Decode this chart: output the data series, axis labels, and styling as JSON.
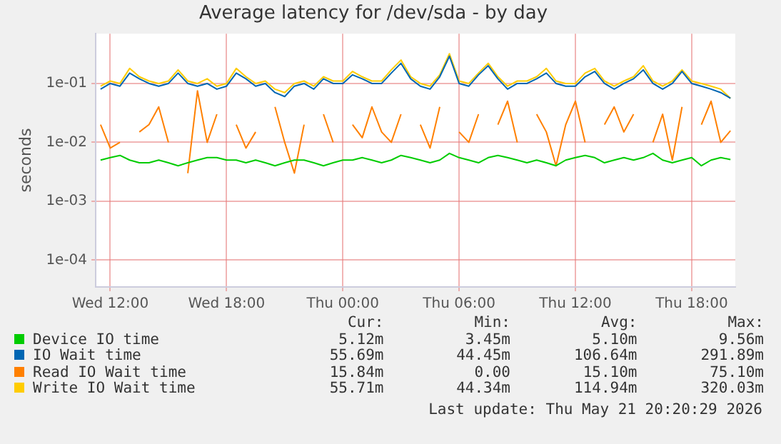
{
  "chart_data": {
    "type": "line",
    "title": "Average latency for /dev/sda - by day",
    "ylabel": "seconds",
    "log": "y",
    "grid": true,
    "legend": "bottom",
    "marker": "none",
    "line_style": "solid",
    "categories": [
      null,
      "Wed 12:00",
      null,
      null,
      null,
      null,
      null,
      null,
      null,
      null,
      null,
      null,
      null,
      "Wed 18:00",
      null,
      null,
      null,
      null,
      null,
      null,
      null,
      null,
      null,
      null,
      null,
      "Thu 00:00",
      null,
      null,
      null,
      null,
      null,
      null,
      null,
      null,
      null,
      null,
      null,
      "Thu 06:00",
      null,
      null,
      null,
      null,
      null,
      null,
      null,
      null,
      null,
      null,
      null,
      "Thu 12:00",
      null,
      null,
      null,
      null,
      null,
      null,
      null,
      null,
      null,
      null,
      null,
      "Thu 18:00",
      null,
      null,
      null,
      null
    ],
    "ylim": [
      3.5e-05,
      0.7
    ],
    "yticks": [
      {
        "value": 0.0001,
        "label": "1e-04"
      },
      {
        "value": 0.001,
        "label": "1e-03"
      },
      {
        "value": 0.01,
        "label": "1e-02"
      },
      {
        "value": 0.1,
        "label": "1e-01"
      }
    ],
    "series": [
      {
        "name": "Device IO time",
        "color": "#00cc00",
        "values": [
          0.005,
          0.0055,
          0.006,
          0.005,
          0.0045,
          0.0045,
          0.005,
          0.0045,
          0.004,
          0.0045,
          0.005,
          0.0055,
          0.0055,
          0.005,
          0.005,
          0.0045,
          0.005,
          0.0045,
          0.004,
          0.0045,
          0.005,
          0.005,
          0.0045,
          0.004,
          0.0045,
          0.005,
          0.005,
          0.0055,
          0.005,
          0.0045,
          0.005,
          0.006,
          0.0055,
          0.005,
          0.0045,
          0.005,
          0.0065,
          0.0055,
          0.005,
          0.0045,
          0.0055,
          0.006,
          0.0055,
          0.005,
          0.0045,
          0.005,
          0.0045,
          0.004,
          0.005,
          0.0055,
          0.006,
          0.0055,
          0.0045,
          0.005,
          0.0055,
          0.005,
          0.0055,
          0.0065,
          0.005,
          0.0045,
          0.005,
          0.0055,
          0.004,
          0.005,
          0.0055,
          0.0051
        ]
      },
      {
        "name": "IO Wait time",
        "color": "#0066b3",
        "values": [
          0.08,
          0.1,
          0.09,
          0.15,
          0.12,
          0.1,
          0.09,
          0.1,
          0.15,
          0.1,
          0.09,
          0.1,
          0.08,
          0.09,
          0.15,
          0.12,
          0.09,
          0.1,
          0.07,
          0.06,
          0.09,
          0.1,
          0.08,
          0.12,
          0.1,
          0.1,
          0.14,
          0.12,
          0.1,
          0.1,
          0.15,
          0.22,
          0.12,
          0.09,
          0.08,
          0.13,
          0.29,
          0.1,
          0.09,
          0.14,
          0.2,
          0.12,
          0.08,
          0.1,
          0.1,
          0.12,
          0.15,
          0.1,
          0.09,
          0.09,
          0.13,
          0.16,
          0.1,
          0.08,
          0.1,
          0.12,
          0.17,
          0.1,
          0.08,
          0.1,
          0.16,
          0.1,
          0.09,
          0.08,
          0.07,
          0.056
        ]
      },
      {
        "name": "Read IO Wait time",
        "color": "#ff8000",
        "values": [
          0.02,
          0.008,
          0.01,
          null,
          0.015,
          0.02,
          0.04,
          0.01,
          null,
          0.003,
          0.075,
          0.01,
          0.03,
          null,
          0.02,
          0.008,
          0.015,
          null,
          0.04,
          0.01,
          0.003,
          0.02,
          null,
          0.03,
          0.01,
          null,
          0.02,
          0.012,
          0.04,
          0.015,
          0.01,
          0.03,
          null,
          0.02,
          0.008,
          0.04,
          null,
          0.015,
          0.01,
          0.03,
          null,
          0.02,
          0.05,
          0.01,
          null,
          0.03,
          0.015,
          0.004,
          0.02,
          0.05,
          0.01,
          null,
          0.02,
          0.04,
          0.015,
          0.03,
          null,
          0.01,
          0.03,
          0.005,
          0.04,
          null,
          0.02,
          0.05,
          0.01,
          0.0158
        ]
      },
      {
        "name": "Write IO Wait time",
        "color": "#ffcc00",
        "values": [
          0.09,
          0.11,
          0.1,
          0.18,
          0.13,
          0.11,
          0.1,
          0.11,
          0.17,
          0.11,
          0.1,
          0.12,
          0.09,
          0.1,
          0.18,
          0.13,
          0.1,
          0.11,
          0.08,
          0.07,
          0.1,
          0.11,
          0.09,
          0.13,
          0.11,
          0.11,
          0.16,
          0.13,
          0.11,
          0.11,
          0.17,
          0.25,
          0.13,
          0.1,
          0.09,
          0.14,
          0.32,
          0.11,
          0.1,
          0.15,
          0.22,
          0.13,
          0.09,
          0.11,
          0.11,
          0.13,
          0.18,
          0.11,
          0.1,
          0.1,
          0.15,
          0.18,
          0.11,
          0.09,
          0.11,
          0.13,
          0.2,
          0.11,
          0.09,
          0.11,
          0.17,
          0.11,
          0.1,
          0.09,
          0.08,
          0.056
        ]
      }
    ],
    "annotations": [
      "Cur:",
      "Min:",
      "Avg:",
      "Max:",
      "5.12m",
      "3.45m",
      "5.10m",
      "9.56m",
      "55.69m",
      "44.45m",
      "106.64m",
      "291.89m",
      "15.84m",
      "0.00",
      "15.10m",
      "75.10m",
      "55.71m",
      "44.34m",
      "114.94m",
      "320.03m",
      "Last update: Thu May 21 20:20:29 2026"
    ]
  }
}
